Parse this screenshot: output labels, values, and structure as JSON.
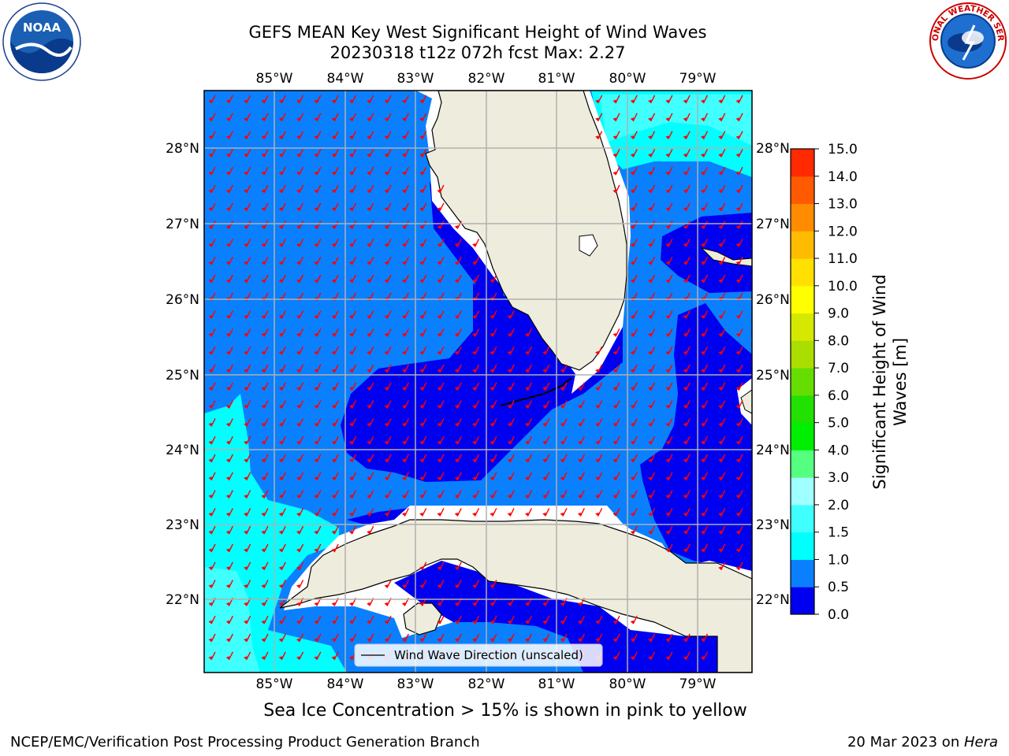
{
  "title": {
    "line1": "GEFS MEAN Key West Significant Height of Wind Waves",
    "line2": "20230318 t12z 072h fcst   Max: 2.27"
  },
  "logos": {
    "left": "noaa-logo",
    "right": "nws-logo",
    "noaa_text": "NOAA",
    "nws_text": "NATIONAL WEATHER SERVICE"
  },
  "map": {
    "lon_labels": [
      "85°W",
      "84°W",
      "83°W",
      "82°W",
      "81°W",
      "80°W",
      "79°W"
    ],
    "lat_labels": [
      "28°N",
      "27°N",
      "26°N",
      "25°N",
      "24°N",
      "23°N",
      "22°N"
    ],
    "legend_label": "Wind Wave Direction (unscaled)",
    "arrow_color": "#ff0000",
    "land_color": "#eeecdc"
  },
  "colorbar": {
    "label": "Significant Height of Wind Waves [m]",
    "label_line1": "Significant Height of Wind",
    "label_line2": "Waves [m]",
    "ticks": [
      "0.0",
      "0.5",
      "1.0",
      "1.5",
      "2.0",
      "3.0",
      "4.0",
      "5.0",
      "6.0",
      "7.0",
      "8.0",
      "9.0",
      "10.0",
      "11.0",
      "12.0",
      "13.0",
      "14.0",
      "15.0"
    ],
    "colors": [
      "#0000f0",
      "#0a80ff",
      "#00ffff",
      "#40ffff",
      "#a0ffff",
      "#55ff80",
      "#00ee00",
      "#22e000",
      "#66dd00",
      "#aadd00",
      "#d4e800",
      "#ffff00",
      "#ffe000",
      "#ffbb00",
      "#ff8c00",
      "#ff5a00",
      "#ff2a00"
    ],
    "top_color": "#ff0000"
  },
  "sea_ice_note": "Sea Ice Concentration > 15% is shown in pink to yellow",
  "footer": {
    "left": "NCEP/EMC/Verification Post Processing Product Generation Branch",
    "right_date": "20 Mar 2023 on ",
    "right_host": "Hera"
  }
}
